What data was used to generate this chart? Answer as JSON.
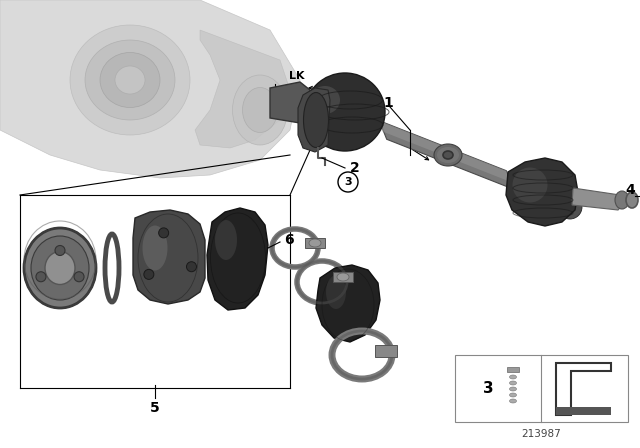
{
  "bg_color": "#ffffff",
  "fig_width": 6.4,
  "fig_height": 4.48,
  "dpi": 100,
  "part_number": "213987",
  "line_color": "#000000",
  "text_color": "#000000",
  "dark_part": "#3a3a3a",
  "mid_part": "#6a6a6a",
  "light_part": "#a0a0a0",
  "shaft_color": "#808080",
  "diff_light": "#c8c8c8",
  "diff_mid": "#b0b0b0"
}
